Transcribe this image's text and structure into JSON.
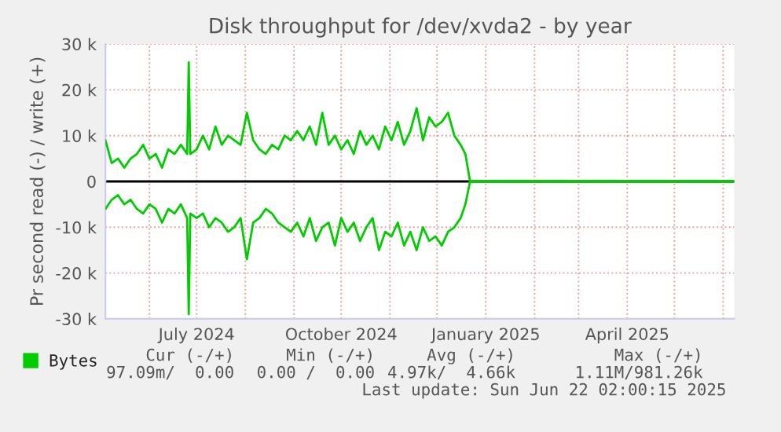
{
  "chart_data": {
    "type": "line",
    "title": "Disk throughput for /dev/xvda2 - by year",
    "ylabel": "Pr second read (-) / write (+)",
    "x": [
      "2024-05-04",
      "2024-05-08",
      "2024-05-12",
      "2024-05-16",
      "2024-05-20",
      "2024-05-24",
      "2024-05-28",
      "2024-06-01",
      "2024-06-05",
      "2024-06-09",
      "2024-06-13",
      "2024-06-17",
      "2024-06-21",
      "2024-06-25",
      "2024-06-26",
      "2024-06-27",
      "2024-07-01",
      "2024-07-05",
      "2024-07-09",
      "2024-07-13",
      "2024-07-17",
      "2024-07-21",
      "2024-07-25",
      "2024-07-29",
      "2024-08-02",
      "2024-08-06",
      "2024-08-10",
      "2024-08-14",
      "2024-08-18",
      "2024-08-22",
      "2024-08-26",
      "2024-08-30",
      "2024-09-03",
      "2024-09-07",
      "2024-09-11",
      "2024-09-15",
      "2024-09-19",
      "2024-09-23",
      "2024-09-27",
      "2024-10-01",
      "2024-10-05",
      "2024-10-09",
      "2024-10-13",
      "2024-10-17",
      "2024-10-21",
      "2024-10-25",
      "2024-10-29",
      "2024-11-02",
      "2024-11-06",
      "2024-11-10",
      "2024-11-14",
      "2024-11-18",
      "2024-11-22",
      "2024-11-26",
      "2024-11-30",
      "2024-12-04",
      "2024-12-08",
      "2024-12-12",
      "2024-12-16",
      "2024-12-19",
      "2024-12-22",
      "2025-06-08"
    ],
    "series": [
      {
        "name": "Bytes",
        "color": "#00cc00",
        "values": [
          9000,
          4000,
          5000,
          3000,
          5000,
          6000,
          8000,
          5000,
          6000,
          3000,
          7000,
          6000,
          8000,
          6000,
          26000,
          6000,
          7000,
          10000,
          7000,
          12000,
          8000,
          10000,
          9000,
          8000,
          15000,
          9000,
          7000,
          6000,
          8000,
          7000,
          10000,
          9000,
          11000,
          9000,
          12000,
          8000,
          15000,
          8000,
          10000,
          7000,
          9000,
          6000,
          11000,
          8000,
          10000,
          7000,
          12000,
          9000,
          13000,
          8000,
          11000,
          16000,
          9000,
          14000,
          12000,
          13000,
          15000,
          10000,
          8000,
          6000,
          0,
          0
        ]
      },
      {
        "color": "#00cc00",
        "values": [
          -6000,
          -4000,
          -3000,
          -5000,
          -4000,
          -6000,
          -7000,
          -5000,
          -6000,
          -9000,
          -6000,
          -7000,
          -5000,
          -8000,
          -29000,
          -7000,
          -8000,
          -7000,
          -10000,
          -8000,
          -9000,
          -11000,
          -10000,
          -8000,
          -17000,
          -9000,
          -8000,
          -6000,
          -7000,
          -9000,
          -10000,
          -11000,
          -9000,
          -12000,
          -8000,
          -13000,
          -10000,
          -9000,
          -14000,
          -8000,
          -11000,
          -9000,
          -13000,
          -10000,
          -8000,
          -15000,
          -11000,
          -12000,
          -9000,
          -14000,
          -11000,
          -15000,
          -10000,
          -13000,
          -12000,
          -14000,
          -11000,
          -10000,
          -8000,
          -5000,
          0,
          0
        ]
      }
    ],
    "xlim": [
      "2024-05-04",
      "2025-06-08"
    ],
    "xticks": [
      {
        "value": "2024-06-01",
        "label": null
      },
      {
        "value": "2024-07-01",
        "label": "July 2024"
      },
      {
        "value": "2024-08-01",
        "label": null
      },
      {
        "value": "2024-09-01",
        "label": null
      },
      {
        "value": "2024-10-01",
        "label": "October 2024"
      },
      {
        "value": "2024-11-01",
        "label": null
      },
      {
        "value": "2024-12-01",
        "label": null
      },
      {
        "value": "2025-01-01",
        "label": "January 2025"
      },
      {
        "value": "2025-02-01",
        "label": null
      },
      {
        "value": "2025-03-01",
        "label": null
      },
      {
        "value": "2025-04-01",
        "label": "April 2025"
      },
      {
        "value": "2025-05-01",
        "label": null
      },
      {
        "value": "2025-06-01",
        "label": null
      }
    ],
    "ylim": [
      -30000,
      30000
    ],
    "yticks": [
      {
        "value": -30000,
        "label": "-30 k"
      },
      {
        "value": -20000,
        "label": "-20 k"
      },
      {
        "value": -10000,
        "label": "-10 k"
      },
      0,
      {
        "value": 10000,
        "label": "10 k"
      },
      {
        "value": 20000,
        "label": "20 k"
      },
      {
        "value": 30000,
        "label": "30 k"
      }
    ],
    "ref_lines": [
      {
        "axis": "y",
        "value": 0,
        "color": "#000000"
      }
    ],
    "grid": true,
    "legend": "bottom left",
    "marker": "none",
    "line_style": "solid",
    "annotations": [
      "Cur (-/+)",
      "Min (-/+)",
      "Avg (-/+)",
      "Max (-/+)",
      "97.09m/  0.00",
      "0.00 /  0.00",
      "4.97k/  4.66k",
      "1.11M/981.26k",
      "Last update: Sun Jun 22 02:00:15 2025"
    ]
  }
}
